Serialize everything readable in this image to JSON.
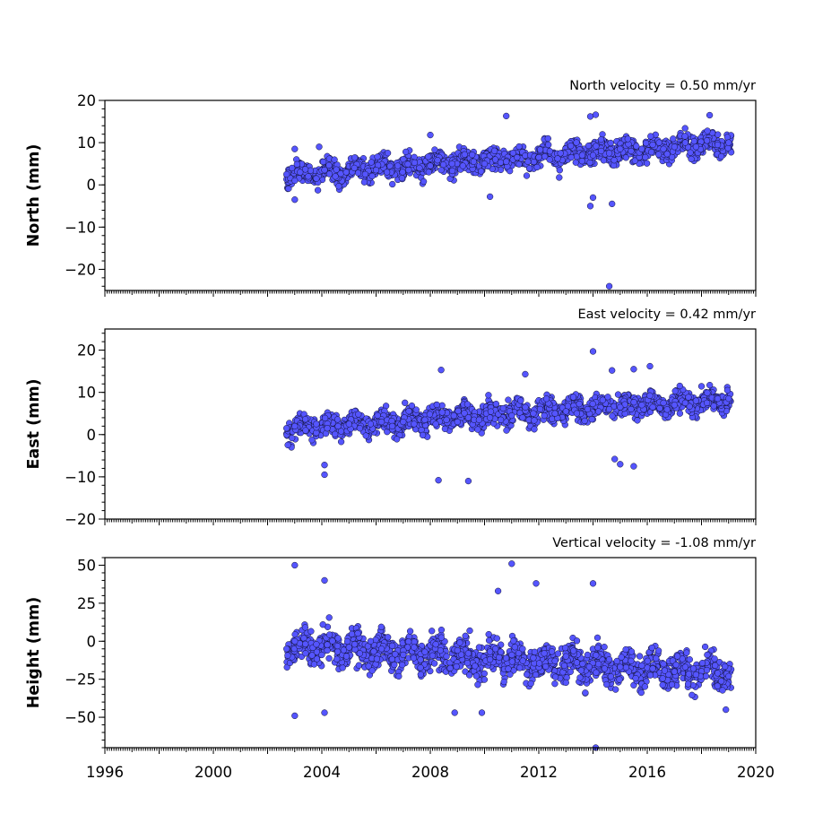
{
  "chart_data": [
    {
      "type": "scatter",
      "title": "North velocity = 0.50 mm/yr",
      "ylabel": "North (mm)",
      "xlabel": "",
      "xlim": [
        1996,
        2020
      ],
      "ylim": [
        -25,
        20
      ],
      "yticks": [
        -20,
        -10,
        0,
        10,
        20
      ],
      "yticklabels": [
        "−20",
        "−10",
        "0",
        "10",
        "20"
      ],
      "grid": false,
      "series": [
        {
          "color": "#5555ff",
          "trend": {
            "x": [
              2002.7,
              2019.1
            ],
            "y": [
              2.5,
              10.0
            ]
          },
          "x": [
            2002.7,
            2002.9,
            2003.0,
            2003.2,
            2003.5,
            2003.8,
            2004.1,
            2004.5,
            2004.9,
            2005.2,
            2005.6,
            2006.0,
            2006.4,
            2006.8,
            2007.2,
            2007.6,
            2008.0,
            2008.4,
            2008.8,
            2009.2,
            2009.6,
            2010.0,
            2010.4,
            2010.8,
            2011.2,
            2011.6,
            2012.0,
            2012.4,
            2012.8,
            2013.2,
            2013.6,
            2014.0,
            2014.3,
            2014.6,
            2015.0,
            2015.4,
            2015.8,
            2016.2,
            2016.6,
            2017.0,
            2017.4,
            2017.8,
            2018.2,
            2018.6,
            2019.0,
            2003.0,
            2003.9,
            2008.0,
            2010.8,
            2013.9,
            2014.1,
            2018.3,
            2010.2,
            2013.9,
            2014.0,
            2014.7,
            2014.6,
            2003.0
          ],
          "y": [
            2.5,
            4.0,
            1.0,
            3.0,
            2.0,
            1.5,
            3.5,
            2.0,
            3.0,
            4.0,
            2.5,
            3.5,
            3.0,
            4.5,
            3.5,
            4.0,
            4.5,
            3.5,
            5.0,
            4.5,
            5.5,
            5.0,
            6.0,
            5.5,
            6.5,
            5.5,
            6.5,
            6.0,
            7.5,
            6.5,
            7.0,
            7.0,
            8.0,
            7.5,
            8.5,
            8.0,
            8.5,
            9.5,
            8.5,
            9.0,
            10.0,
            9.0,
            10.5,
            9.5,
            10.0,
            8.5,
            9.0,
            11.8,
            16.3,
            16.2,
            16.6,
            16.5,
            -2.8,
            -5.0,
            -3.0,
            -4.5,
            -24.0,
            -3.5
          ]
        }
      ]
    },
    {
      "type": "scatter",
      "title": "East velocity = 0.42 mm/yr",
      "ylabel": "East (mm)",
      "xlabel": "",
      "xlim": [
        1996,
        2020
      ],
      "ylim": [
        -20,
        25
      ],
      "yticks": [
        -20,
        -10,
        0,
        10,
        20
      ],
      "yticklabels": [
        "−20",
        "−10",
        "0",
        "10",
        "20"
      ],
      "grid": false,
      "series": [
        {
          "color": "#5555ff",
          "trend": {
            "x": [
              2002.7,
              2019.1
            ],
            "y": [
              1.5,
              8.5
            ]
          },
          "x": [
            2002.7,
            2003.0,
            2003.4,
            2003.8,
            2004.2,
            2004.6,
            2005.0,
            2005.4,
            2005.8,
            2006.2,
            2006.6,
            2007.0,
            2007.4,
            2007.8,
            2008.2,
            2008.6,
            2009.0,
            2009.4,
            2009.8,
            2010.2,
            2010.6,
            2011.0,
            2011.4,
            2011.8,
            2012.2,
            2012.6,
            2013.0,
            2013.4,
            2013.8,
            2014.2,
            2014.6,
            2015.0,
            2015.4,
            2015.8,
            2016.2,
            2016.6,
            2017.0,
            2017.4,
            2017.8,
            2018.2,
            2018.6,
            2019.0,
            2008.4,
            2011.5,
            2014.0,
            2014.7,
            2015.5,
            2016.1,
            2008.3,
            2009.4,
            2004.1,
            2004.1,
            2014.8,
            2015.0,
            2015.5
          ],
          "y": [
            1.5,
            2.0,
            1.0,
            2.5,
            1.5,
            2.0,
            2.5,
            1.5,
            2.5,
            3.0,
            2.0,
            3.0,
            2.5,
            3.5,
            2.5,
            3.5,
            3.0,
            4.0,
            3.5,
            4.0,
            3.5,
            4.5,
            4.0,
            5.0,
            4.5,
            5.0,
            5.5,
            5.0,
            6.0,
            5.5,
            6.0,
            6.5,
            6.0,
            7.0,
            6.5,
            7.5,
            7.0,
            7.5,
            8.0,
            7.5,
            8.5,
            8.5,
            15.3,
            14.3,
            19.7,
            15.2,
            15.5,
            16.2,
            -10.8,
            -11.0,
            -7.2,
            -9.5,
            -5.8,
            -7.0,
            -7.5
          ]
        }
      ]
    },
    {
      "type": "scatter",
      "title": "Vertical velocity = -1.08 mm/yr",
      "ylabel": "Height (mm)",
      "xlabel": "",
      "xlim": [
        1996,
        2020
      ],
      "ylim": [
        -70,
        55
      ],
      "yticks": [
        -50,
        -25,
        0,
        25,
        50
      ],
      "yticklabels": [
        "−50",
        "−25",
        "0",
        "25",
        "50"
      ],
      "xticks": [
        1996,
        2000,
        2004,
        2008,
        2012,
        2016,
        2020
      ],
      "xticklabels": [
        "1996",
        "2000",
        "2004",
        "2008",
        "2012",
        "2016",
        "2020"
      ],
      "grid": false,
      "series": [
        {
          "color": "#5555ff",
          "trend": {
            "x": [
              2002.7,
              2019.1
            ],
            "y": [
              -3.0,
              -21.0
            ]
          },
          "x": [
            2002.7,
            2003.0,
            2003.4,
            2003.8,
            2004.2,
            2004.6,
            2005.0,
            2005.4,
            2005.8,
            2006.2,
            2006.6,
            2007.0,
            2007.4,
            2007.8,
            2008.2,
            2008.6,
            2009.0,
            2009.4,
            2009.8,
            2010.2,
            2010.6,
            2011.0,
            2011.4,
            2011.8,
            2012.2,
            2012.6,
            2013.0,
            2013.4,
            2013.8,
            2014.2,
            2014.6,
            2015.0,
            2015.4,
            2015.8,
            2016.2,
            2016.6,
            2017.0,
            2017.4,
            2017.8,
            2018.2,
            2018.6,
            2019.0,
            2003.0,
            2004.1,
            2011.0,
            2014.0,
            2010.5,
            2011.9,
            2003.0,
            2004.1,
            2008.9,
            2009.9,
            2014.1,
            2018.9
          ],
          "y": [
            -5.0,
            0.0,
            -8.0,
            -2.0,
            -6.0,
            2.0,
            -4.0,
            -8.0,
            0.0,
            -5.0,
            -3.0,
            -9.0,
            -4.0,
            -7.0,
            -2.0,
            -10.0,
            -6.0,
            -8.0,
            -4.0,
            -12.0,
            -7.0,
            -9.0,
            -5.0,
            -11.0,
            -8.0,
            -13.0,
            -10.0,
            -14.0,
            -9.0,
            -15.0,
            -12.0,
            -17.0,
            -13.0,
            -16.0,
            -18.0,
            -15.0,
            -20.0,
            -17.0,
            -22.0,
            -19.0,
            -21.0,
            -23.0,
            50.0,
            40.0,
            51.0,
            38.0,
            33.0,
            38.0,
            -49.0,
            -47.0,
            -47.0,
            -47.0,
            -70.0,
            -45.0
          ]
        }
      ]
    }
  ]
}
